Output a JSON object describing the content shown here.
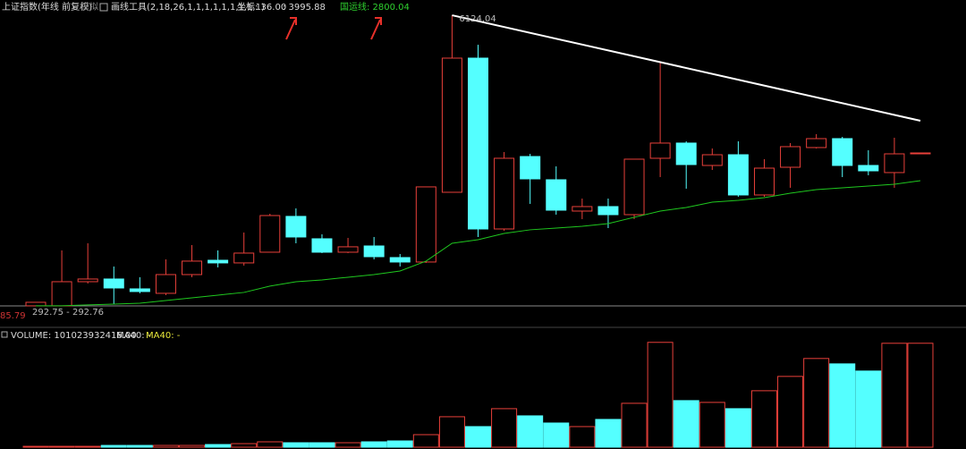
{
  "header": {
    "title": "上证指数(年线 前复权)",
    "mode": "模拟",
    "tool": "画线工具(2,18,26,1,1,1,1,1,1,1,1,1)",
    "coord": "坐标: 36.00",
    "coord_value": ": 3995.88",
    "guo_yun": "国运线: 2800.04"
  },
  "chart_data": {
    "type": "candlestick",
    "up_color": "#e8403a",
    "down_color": "#54ffff",
    "ma_color": "#1fc81f",
    "trend_color": "#ffffff",
    "open": [
      295,
      295,
      779,
      833,
      635,
      546,
      922,
      1209,
      1156,
      1371,
      2089,
      1640,
      1371,
      1496,
      1263,
      1174,
      2573,
      5264,
      1837,
      3290,
      2824,
      2196,
      2286,
      2124,
      3255,
      3560,
      3111,
      3326,
      2519,
      3075,
      3470,
      3649,
      3111,
      2968,
      3344
    ],
    "high": [
      366,
      1407,
      1550,
      1084,
      869,
      1227,
      1514,
      1407,
      1766,
      2142,
      2250,
      1730,
      1658,
      1676,
      1335,
      2681,
      6124.04,
      5533,
      3380,
      3344,
      3093,
      2447,
      2447,
      3237,
      5174,
      3595,
      3452,
      3595,
      3237,
      3560,
      3739,
      3685,
      3416,
      3667,
      3362
    ],
    "low": [
      295,
      295,
      743,
      330,
      546,
      510,
      869,
      1066,
      1102,
      1371,
      1550,
      1353,
      1353,
      1227,
      1084,
      1156,
      2573,
      1676,
      1801,
      2340,
      2124,
      2035,
      1855,
      2035,
      2878,
      2645,
      3021,
      2483,
      2483,
      2663,
      3452,
      2878,
      2914,
      2663,
      3344
    ],
    "close": [
      366,
      779,
      833,
      653,
      582,
      922,
      1192,
      1156,
      1353,
      2106,
      1676,
      1371,
      1479,
      1281,
      1174,
      2681,
      5264,
      1837,
      3255,
      2842,
      2214,
      2286,
      2124,
      3237,
      3560,
      3129,
      3326,
      2519,
      3057,
      3488,
      3649,
      3111,
      3003,
      3344,
      3362
    ],
    "ma": [
      295,
      295,
      313,
      330,
      348,
      402,
      456,
      510,
      564,
      690,
      779,
      815,
      869,
      922,
      994,
      1192,
      1550,
      1622,
      1748,
      1820,
      1855,
      1891,
      1945,
      2071,
      2196,
      2268,
      2376,
      2411,
      2465,
      2555,
      2627,
      2663,
      2698,
      2734,
      2806
    ],
    "ylim": [
      240,
      6430
    ],
    "volume": [
      870000000,
      870000000,
      870000000,
      1740000000,
      1740000000,
      1740000000,
      1740000000,
      2610000000,
      3480000000,
      5230000000,
      4350000000,
      4350000000,
      4350000000,
      5230000000,
      6100000000,
      12190000000,
      29610000000,
      20030000000,
      37450000000,
      30480000000,
      23510000000,
      20030000000,
      27000000000,
      42670000000,
      101900000000,
      45290000000,
      43550000000,
      37450000000,
      54870000000,
      68800000000,
      86220000000,
      80990000000,
      74030000000,
      101000000000,
      101023932416
    ],
    "volume_ylim": [
      0,
      113000000000
    ],
    "low_label": "292.75 - 292.76",
    "ratio_label": "85.79",
    "volume_label": "VOLUME: 101023932416.00",
    "ma_label": "MA40: -",
    "ma_label2": "MA40: -"
  }
}
